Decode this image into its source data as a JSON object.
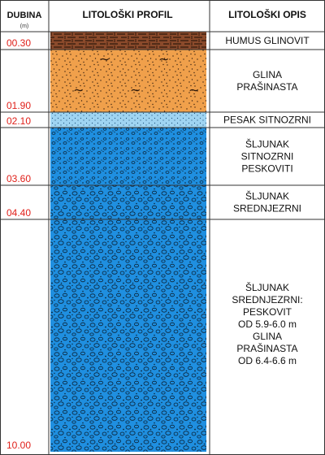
{
  "header": {
    "depth_title": "DUBINA",
    "depth_unit": "(m)",
    "profile_title": "LITOLOŠKI PROFIL",
    "description_title": "LITOLOŠKI OPIS"
  },
  "log": {
    "top_depth_m": 0,
    "bottom_depth_m": 10.0
  },
  "layers": [
    {
      "from_m": 0.0,
      "to_m": 0.3,
      "depth_label": "00.30",
      "pattern": "humus",
      "fill_color": "#8b4a2b",
      "description": [
        "HUMUS GLINOVIT"
      ]
    },
    {
      "from_m": 0.3,
      "to_m": 1.9,
      "depth_label": "01.90",
      "pattern": "silty-clay",
      "fill_color": "#f0a04b",
      "description": [
        "GLINA",
        "PRAŠINASTA"
      ]
    },
    {
      "from_m": 1.9,
      "to_m": 2.1,
      "depth_label": "02.10",
      "pattern": "fine-sand",
      "fill_color": "#9fd4f2",
      "description": [
        "PESAK SITNOZRNI"
      ]
    },
    {
      "from_m": 2.1,
      "to_m": 3.6,
      "depth_label": "03.60",
      "pattern": "fine-gravel",
      "fill_color": "#1f8fe0",
      "description": [
        "ŠLJUNAK",
        "SITNOZRNI",
        "PESKOVITI"
      ]
    },
    {
      "from_m": 3.6,
      "to_m": 4.4,
      "depth_label": "04.40",
      "pattern": "medium-gravel",
      "fill_color": "#1f8fe0",
      "description": [
        "ŠLJUNAK",
        "SREDNJEZRNI"
      ]
    },
    {
      "from_m": 4.4,
      "to_m": 10.0,
      "depth_label": "10.00",
      "pattern": "medium-gravel",
      "fill_color": "#1f8fe0",
      "description": [
        "ŠLJUNAK",
        "SREDNJEZRNI:",
        "PESKOVIT",
        "OD 5.9-6.0 m",
        "GLINA",
        "PRAŠINASTA",
        "OD 6.4-6.6 m"
      ]
    }
  ],
  "colors": {
    "depth_text": "#e0201a",
    "grid": "#333333",
    "pebble": "#0a2236"
  }
}
